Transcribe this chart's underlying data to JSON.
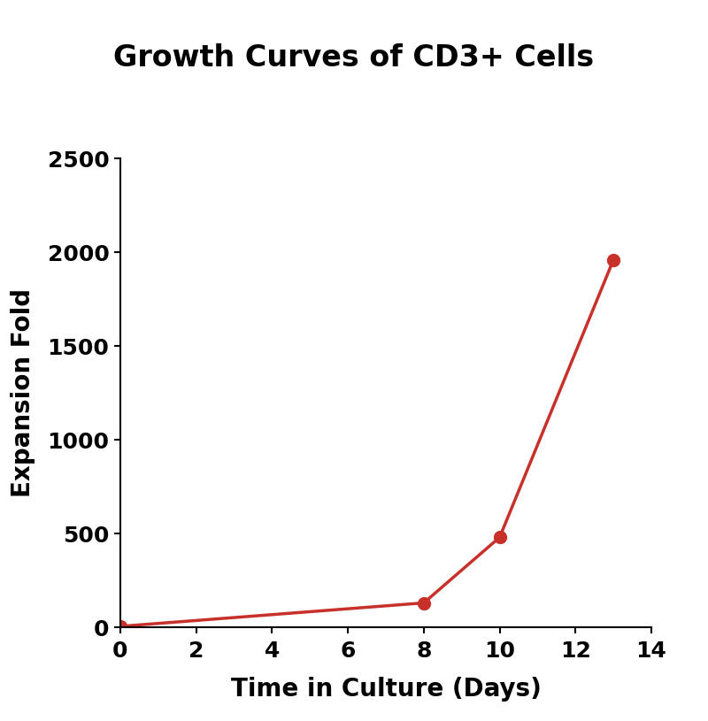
{
  "title": "Growth Curves of CD3+ Cells",
  "xlabel": "Time in Culture (Days)",
  "ylabel": "Expansion Fold",
  "x_data": [
    0,
    8,
    10,
    13
  ],
  "y_data": [
    5,
    130,
    480,
    1960
  ],
  "line_color": "#C8302A",
  "marker": "o",
  "marker_size": 10,
  "line_width": 2.5,
  "xlim": [
    0,
    14
  ],
  "ylim": [
    0,
    2500
  ],
  "xticks": [
    0,
    2,
    4,
    6,
    8,
    10,
    12,
    14
  ],
  "yticks": [
    0,
    500,
    1000,
    1500,
    2000,
    2500
  ],
  "title_fontsize": 24,
  "label_fontsize": 20,
  "tick_fontsize": 18,
  "background_color": "#ffffff"
}
